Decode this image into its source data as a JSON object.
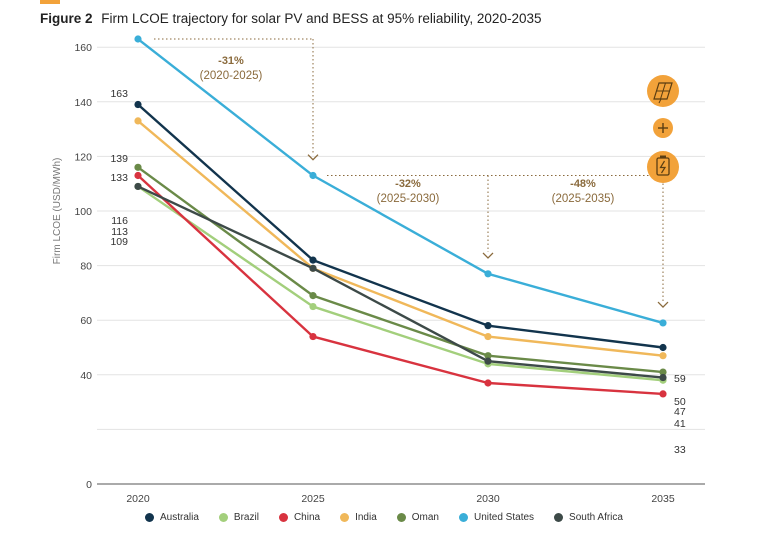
{
  "header": {
    "figure_label": "Figure 2",
    "title": "Firm LCOE trajectory for solar PV and BESS at 95% reliability, 2020-2035"
  },
  "chart_data": {
    "type": "line",
    "x": [
      2020,
      2025,
      2030,
      2035
    ],
    "xticks": [
      "2020",
      "2025",
      "2030",
      "2035"
    ],
    "ylabel": "Firm LCOE (USD/MWh)",
    "ylim": [
      0,
      170
    ],
    "yticks": [
      0,
      20,
      40,
      60,
      80,
      100,
      120,
      140,
      160
    ],
    "ytick_labels": [
      "0",
      "",
      "40",
      "60",
      "80",
      "100",
      "120",
      "140",
      "160"
    ],
    "grid": true,
    "legend_position": "bottom",
    "series": [
      {
        "name": "Australia",
        "color": "#12344d",
        "values": [
          139,
          82,
          58,
          50
        ]
      },
      {
        "name": "Brazil",
        "color": "#a3cf7c",
        "values": [
          109,
          65,
          44,
          38
        ]
      },
      {
        "name": "China",
        "color": "#d8333f",
        "values": [
          113,
          54,
          37,
          33
        ]
      },
      {
        "name": "India",
        "color": "#f0b85a",
        "values": [
          133,
          79,
          54,
          47
        ]
      },
      {
        "name": "Oman",
        "color": "#6a8a48",
        "values": [
          116,
          69,
          47,
          41
        ]
      },
      {
        "name": "United States",
        "color": "#3aaed8",
        "values": [
          163,
          113,
          77,
          59
        ]
      },
      {
        "name": "South Africa",
        "color": "#3d4a48",
        "values": [
          109,
          79,
          45,
          39
        ]
      }
    ],
    "start_labels": [
      {
        "text": "163",
        "value": 163
      },
      {
        "text": "139",
        "value": 139
      },
      {
        "text": "133",
        "value": 133
      },
      {
        "text": "116",
        "value": 116
      },
      {
        "text": "113",
        "value": 113
      },
      {
        "text": "109",
        "value": 109
      }
    ],
    "end_labels": [
      {
        "text": "59",
        "value": 59
      },
      {
        "text": "50",
        "value": 50
      },
      {
        "text": "47",
        "value": 47
      },
      {
        "text": "41",
        "value": 41
      },
      {
        "text": "33",
        "value": 33
      }
    ],
    "annotations": [
      {
        "pct": "-31%",
        "period": "(2020-2025)",
        "from_x": 2020,
        "to_x": 2025,
        "level": 163,
        "arrow_to": 121
      },
      {
        "pct": "-32%",
        "period": "(2025-2030)",
        "from_x": 2025,
        "to_x": 2030,
        "level": 113,
        "arrow_to": 85
      },
      {
        "pct": "-48%",
        "period": "(2025-2035)",
        "from_x": 2025,
        "to_x": 2035,
        "level": 113,
        "arrow_to": 67
      }
    ],
    "annotation_color": "#8a6a3c",
    "icons": [
      {
        "name": "solar-panel-icon",
        "color": "#f2a23a"
      },
      {
        "name": "plus-icon",
        "color": "#f2a23a"
      },
      {
        "name": "battery-icon",
        "color": "#f2a23a"
      }
    ]
  }
}
